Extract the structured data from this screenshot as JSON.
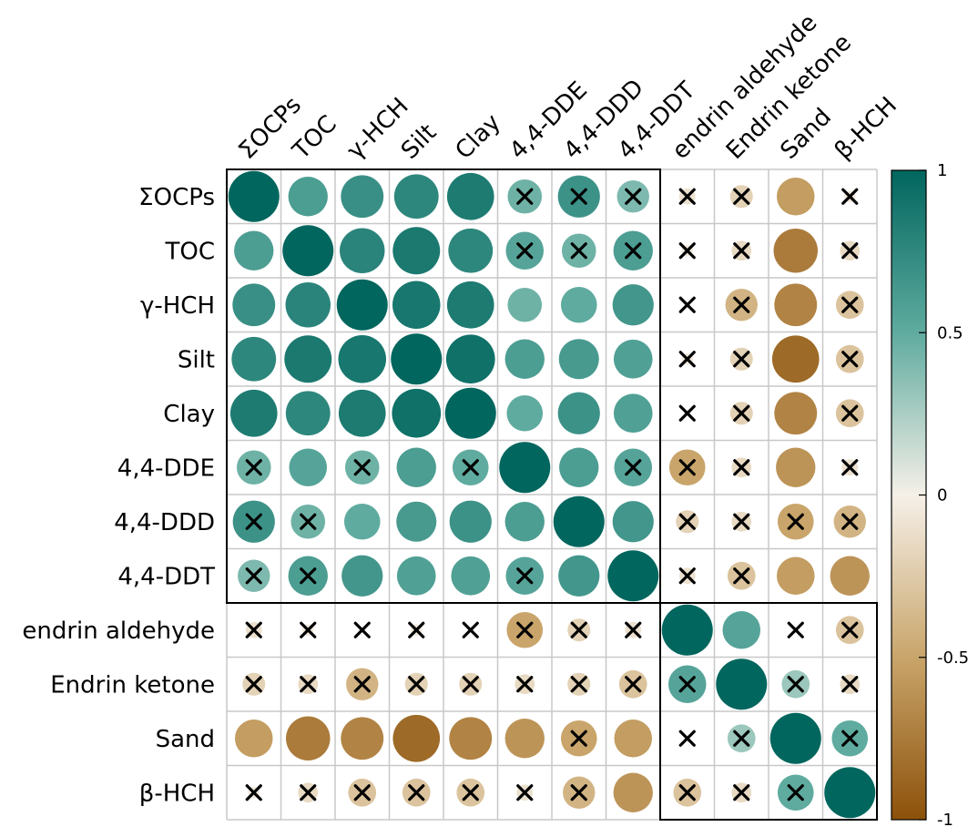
{
  "chart_data": {
    "type": "heatmap",
    "subtype": "correlation-circle-matrix",
    "variables": [
      "ΣOCPs",
      "TOC",
      "γ-HCH",
      "Silt",
      "Clay",
      "4,4-DDE",
      "4,4-DDD",
      "4,4-DDT",
      "endrin aldehyde",
      "Endrin ketone",
      "Sand",
      "β-HCH"
    ],
    "matrix": [
      [
        1.0,
        0.6,
        0.7,
        0.76,
        0.85,
        0.45,
        0.68,
        0.4,
        -0.1,
        -0.2,
        -0.55,
        -0.05
      ],
      [
        0.6,
        1.0,
        0.78,
        0.86,
        0.76,
        0.55,
        0.45,
        0.6,
        -0.05,
        -0.15,
        -0.75,
        -0.15
      ],
      [
        0.7,
        0.78,
        1.0,
        0.88,
        0.85,
        0.45,
        0.5,
        0.65,
        0.0,
        -0.4,
        -0.7,
        -0.3
      ],
      [
        0.76,
        0.86,
        0.88,
        1.0,
        0.92,
        0.6,
        0.62,
        0.58,
        -0.05,
        -0.2,
        -0.85,
        -0.3
      ],
      [
        0.85,
        0.76,
        0.85,
        0.92,
        1.0,
        0.5,
        0.68,
        0.58,
        0.0,
        -0.2,
        -0.7,
        -0.3
      ],
      [
        0.45,
        0.55,
        0.45,
        0.6,
        0.5,
        1.0,
        0.6,
        0.55,
        -0.5,
        -0.15,
        -0.6,
        -0.1
      ],
      [
        0.68,
        0.45,
        0.5,
        0.62,
        0.68,
        0.6,
        1.0,
        0.65,
        -0.2,
        -0.15,
        -0.5,
        -0.4
      ],
      [
        0.4,
        0.6,
        0.65,
        0.58,
        0.58,
        0.55,
        0.65,
        1.0,
        -0.1,
        -0.3,
        -0.55,
        -0.6
      ],
      [
        -0.1,
        -0.05,
        0.0,
        -0.05,
        0.0,
        -0.5,
        -0.2,
        -0.1,
        1.0,
        0.55,
        0.0,
        -0.3
      ],
      [
        -0.2,
        -0.15,
        -0.4,
        -0.2,
        -0.2,
        -0.15,
        -0.2,
        -0.3,
        0.55,
        1.0,
        0.3,
        -0.15
      ],
      [
        -0.55,
        -0.75,
        -0.7,
        -0.85,
        -0.7,
        -0.6,
        -0.5,
        -0.55,
        0.0,
        0.3,
        1.0,
        0.5
      ],
      [
        -0.05,
        -0.15,
        -0.3,
        -0.3,
        -0.3,
        -0.1,
        -0.4,
        -0.6,
        -0.3,
        -0.15,
        0.5,
        1.0
      ]
    ],
    "nonsignificant": [
      [
        0,
        5
      ],
      [
        0,
        6
      ],
      [
        0,
        7
      ],
      [
        0,
        8
      ],
      [
        0,
        9
      ],
      [
        0,
        11
      ],
      [
        1,
        5
      ],
      [
        1,
        6
      ],
      [
        1,
        7
      ],
      [
        1,
        8
      ],
      [
        1,
        9
      ],
      [
        1,
        11
      ],
      [
        2,
        8
      ],
      [
        2,
        9
      ],
      [
        2,
        11
      ],
      [
        3,
        8
      ],
      [
        3,
        9
      ],
      [
        3,
        11
      ],
      [
        4,
        8
      ],
      [
        4,
        9
      ],
      [
        4,
        11
      ],
      [
        5,
        0
      ],
      [
        5,
        2
      ],
      [
        5,
        4
      ],
      [
        5,
        7
      ],
      [
        5,
        8
      ],
      [
        5,
        9
      ],
      [
        5,
        11
      ],
      [
        6,
        0
      ],
      [
        6,
        1
      ],
      [
        6,
        8
      ],
      [
        6,
        9
      ],
      [
        6,
        10
      ],
      [
        6,
        11
      ],
      [
        7,
        0
      ],
      [
        7,
        1
      ],
      [
        7,
        5
      ],
      [
        7,
        8
      ],
      [
        7,
        9
      ],
      [
        8,
        0
      ],
      [
        8,
        1
      ],
      [
        8,
        2
      ],
      [
        8,
        3
      ],
      [
        8,
        4
      ],
      [
        8,
        5
      ],
      [
        8,
        6
      ],
      [
        8,
        7
      ],
      [
        8,
        10
      ],
      [
        8,
        11
      ],
      [
        9,
        0
      ],
      [
        9,
        1
      ],
      [
        9,
        2
      ],
      [
        9,
        3
      ],
      [
        9,
        4
      ],
      [
        9,
        5
      ],
      [
        9,
        6
      ],
      [
        9,
        7
      ],
      [
        9,
        8
      ],
      [
        9,
        10
      ],
      [
        9,
        11
      ],
      [
        10,
        6
      ],
      [
        10,
        8
      ],
      [
        10,
        9
      ],
      [
        10,
        11
      ],
      [
        11,
        0
      ],
      [
        11,
        1
      ],
      [
        11,
        2
      ],
      [
        11,
        3
      ],
      [
        11,
        4
      ],
      [
        11,
        5
      ],
      [
        11,
        6
      ],
      [
        11,
        8
      ],
      [
        11,
        9
      ],
      [
        11,
        10
      ]
    ],
    "clusters": [
      [
        0,
        7
      ],
      [
        8,
        11
      ]
    ],
    "colorbar": {
      "ticks": [
        1,
        0.5,
        0,
        -0.5,
        -1
      ],
      "tick_labels": [
        "1",
        "0.5",
        "0",
        "-0.5",
        "-1"
      ],
      "range": [
        -1,
        1
      ]
    },
    "colors": {
      "positive": "#01665e",
      "neutral": "#f5f0e8",
      "negative": "#8c510a",
      "grid": "#c8c8c8"
    }
  }
}
